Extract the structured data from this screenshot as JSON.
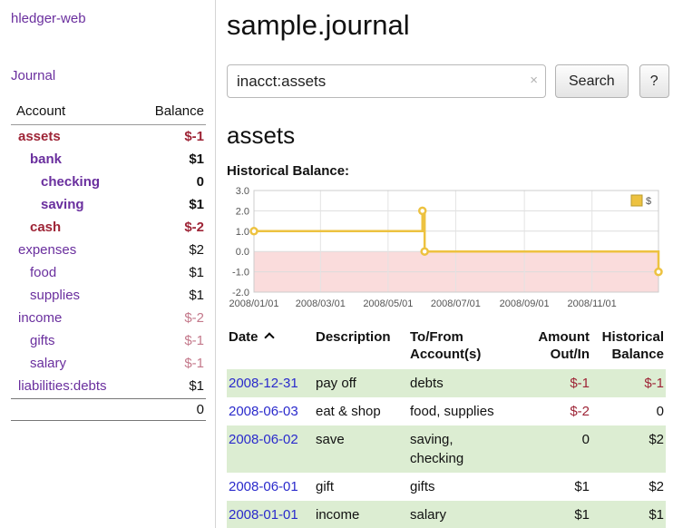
{
  "colors": {
    "purple": "#6a2f9e",
    "negative-dark": "#9e2436",
    "negative-soft": "#c4798b",
    "link-blue": "#2a2acc",
    "row-green": "#dcedd2"
  },
  "sidebar": {
    "app_title": "hledger-web",
    "journal_link": "Journal",
    "headers": {
      "account": "Account",
      "balance": "Balance"
    },
    "accounts": [
      {
        "name": "assets",
        "balance": "$-1",
        "indent": 0,
        "bold": true,
        "name_tone": "dark",
        "bal_tone": "dark"
      },
      {
        "name": "bank",
        "balance": "$1",
        "indent": 1,
        "bold": true
      },
      {
        "name": "checking",
        "balance": "0",
        "indent": 2,
        "bold": true
      },
      {
        "name": "saving",
        "balance": "$1",
        "indent": 2,
        "bold": true
      },
      {
        "name": "cash",
        "balance": "$-2",
        "indent": 1,
        "bold": true,
        "name_tone": "dark",
        "bal_tone": "dark"
      },
      {
        "name": "expenses",
        "balance": "$2",
        "indent": 0
      },
      {
        "name": "food",
        "balance": "$1",
        "indent": 1
      },
      {
        "name": "supplies",
        "balance": "$1",
        "indent": 1
      },
      {
        "name": "income",
        "balance": "$-2",
        "indent": 0,
        "bal_tone": "soft"
      },
      {
        "name": "gifts",
        "balance": "$-1",
        "indent": 1,
        "bal_tone": "soft"
      },
      {
        "name": "salary",
        "balance": "$-1",
        "indent": 1,
        "bal_tone": "soft"
      },
      {
        "name": "liabilities:debts",
        "balance": "$1",
        "indent": 0
      }
    ],
    "total": "0"
  },
  "main": {
    "title": "sample.journal",
    "search": {
      "value": "inacct:assets",
      "clear_icon": "×",
      "button_label": "Search",
      "help_label": "?"
    },
    "section_title": "assets",
    "chart_label": "Historical Balance:"
  },
  "chart_data": {
    "type": "line",
    "step": true,
    "title": "Historical Balance",
    "series": [
      {
        "name": "$",
        "color": "#edc240",
        "points": [
          [
            "2008-01-01",
            1
          ],
          [
            "2008-06-01",
            2
          ],
          [
            "2008-06-03",
            0
          ],
          [
            "2008-12-31",
            -1
          ]
        ]
      }
    ],
    "x_domain": [
      "2008-01-01",
      "2008-12-31"
    ],
    "x_ticks": [
      "2008/01/01",
      "2008/03/01",
      "2008/05/01",
      "2008/07/01",
      "2008/09/01",
      "2008/11/01"
    ],
    "y_ticks": [
      "3.0",
      "2.0",
      "1.0",
      "0.0",
      "-1.0",
      "-2.0"
    ],
    "ylim": [
      -2,
      3
    ],
    "grid": true,
    "negative_region": {
      "from": 0,
      "to": -2,
      "color": "#fadcdc"
    },
    "legend": {
      "label": "$",
      "position": "top-right"
    }
  },
  "transactions": {
    "sort": "ascending",
    "headers": {
      "date": "Date",
      "description": "Description",
      "accounts": "To/From\nAccount(s)",
      "amount": "Amount\nOut/In",
      "balance": "Historical\nBalance"
    },
    "rows": [
      {
        "date": "2008-12-31",
        "description": "pay off",
        "accounts": "debts",
        "amount": "$-1",
        "amount_negative": true,
        "balance": "$-1",
        "balance_negative": true
      },
      {
        "date": "2008-06-03",
        "description": "eat & shop",
        "accounts": "food, supplies",
        "amount": "$-2",
        "amount_negative": true,
        "balance": "0",
        "balance_negative": false
      },
      {
        "date": "2008-06-02",
        "description": "save",
        "accounts": "saving,\nchecking",
        "amount": "0",
        "amount_negative": false,
        "balance": "$2",
        "balance_negative": false
      },
      {
        "date": "2008-06-01",
        "description": "gift",
        "accounts": "gifts",
        "amount": "$1",
        "amount_negative": false,
        "balance": "$2",
        "balance_negative": false
      },
      {
        "date": "2008-01-01",
        "description": "income",
        "accounts": "salary",
        "amount": "$1",
        "amount_negative": false,
        "balance": "$1",
        "balance_negative": false
      }
    ]
  }
}
